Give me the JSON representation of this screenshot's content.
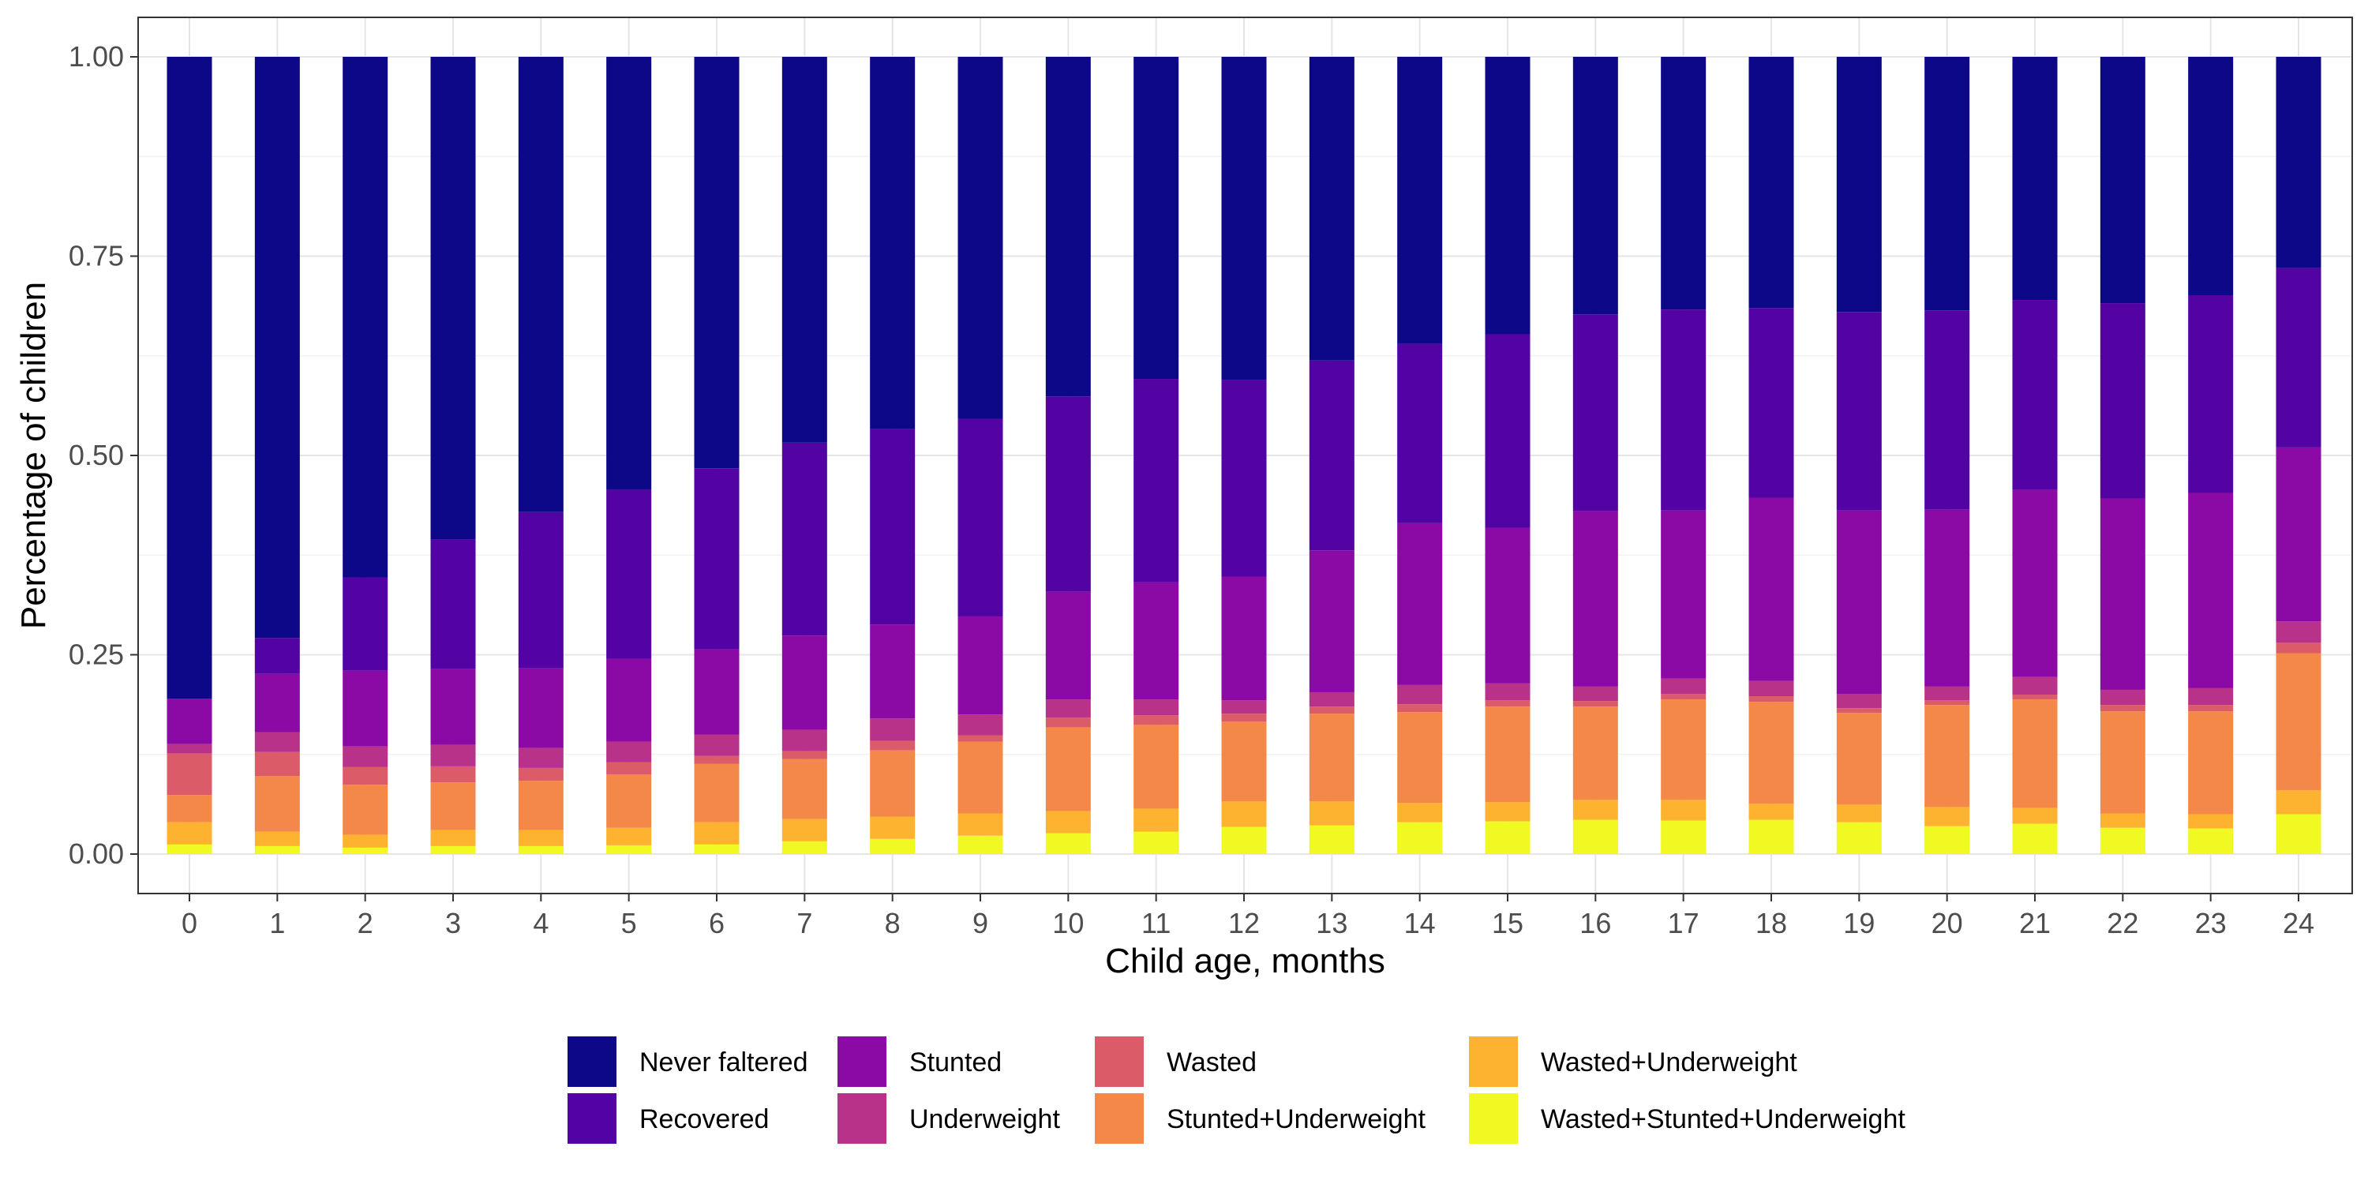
{
  "chart_data": {
    "type": "bar",
    "stacked": true,
    "title": "",
    "xlabel": "Child age, months",
    "ylabel": "Percentage of children",
    "ylim": [
      0,
      1
    ],
    "yticks": [
      "0.00",
      "0.25",
      "0.50",
      "0.75",
      "1.00"
    ],
    "grid": true,
    "legend_position": "bottom",
    "categories": [
      "0",
      "1",
      "2",
      "3",
      "4",
      "5",
      "6",
      "7",
      "8",
      "9",
      "10",
      "11",
      "12",
      "13",
      "14",
      "15",
      "16",
      "17",
      "18",
      "19",
      "20",
      "21",
      "22",
      "23",
      "24"
    ],
    "series": [
      {
        "name": "Wasted+Stunted+Underweight",
        "color": "#F0F921",
        "values": [
          0.012,
          0.01,
          0.008,
          0.01,
          0.01,
          0.011,
          0.012,
          0.016,
          0.019,
          0.023,
          0.026,
          0.028,
          0.034,
          0.036,
          0.04,
          0.041,
          0.043,
          0.042,
          0.043,
          0.04,
          0.035,
          0.038,
          0.033,
          0.032,
          0.05
        ]
      },
      {
        "name": "Wasted+Underweight",
        "color": "#FDB32F",
        "values": [
          0.028,
          0.018,
          0.016,
          0.02,
          0.02,
          0.022,
          0.028,
          0.028,
          0.028,
          0.028,
          0.028,
          0.029,
          0.032,
          0.03,
          0.024,
          0.024,
          0.025,
          0.026,
          0.02,
          0.022,
          0.024,
          0.02,
          0.018,
          0.018,
          0.03
        ]
      },
      {
        "name": "Stunted+Underweight",
        "color": "#F48849",
        "values": [
          0.034,
          0.07,
          0.063,
          0.06,
          0.062,
          0.067,
          0.073,
          0.075,
          0.083,
          0.09,
          0.105,
          0.105,
          0.1,
          0.11,
          0.114,
          0.12,
          0.117,
          0.126,
          0.128,
          0.115,
          0.128,
          0.136,
          0.128,
          0.129,
          0.172
        ]
      },
      {
        "name": "Wasted",
        "color": "#DB5C68",
        "values": [
          0.052,
          0.03,
          0.022,
          0.02,
          0.016,
          0.015,
          0.01,
          0.01,
          0.012,
          0.008,
          0.012,
          0.012,
          0.01,
          0.009,
          0.01,
          0.008,
          0.007,
          0.007,
          0.007,
          0.006,
          0.006,
          0.006,
          0.008,
          0.008,
          0.013
        ]
      },
      {
        "name": "Underweight",
        "color": "#B83289",
        "values": [
          0.012,
          0.025,
          0.026,
          0.027,
          0.025,
          0.026,
          0.027,
          0.027,
          0.028,
          0.026,
          0.023,
          0.02,
          0.017,
          0.018,
          0.024,
          0.021,
          0.018,
          0.019,
          0.019,
          0.018,
          0.017,
          0.022,
          0.019,
          0.021,
          0.027
        ]
      },
      {
        "name": "Stunted",
        "color": "#8B0AA5",
        "values": [
          0.057,
          0.073,
          0.095,
          0.095,
          0.1,
          0.104,
          0.107,
          0.118,
          0.118,
          0.123,
          0.135,
          0.147,
          0.155,
          0.178,
          0.203,
          0.195,
          0.22,
          0.211,
          0.23,
          0.23,
          0.222,
          0.235,
          0.24,
          0.245,
          0.218
        ]
      },
      {
        "name": "Recovered",
        "color": "#5302A3",
        "values": [
          0.0,
          0.045,
          0.117,
          0.163,
          0.196,
          0.212,
          0.227,
          0.242,
          0.245,
          0.248,
          0.245,
          0.255,
          0.247,
          0.238,
          0.225,
          0.243,
          0.247,
          0.252,
          0.238,
          0.249,
          0.25,
          0.238,
          0.245,
          0.248,
          0.225
        ]
      },
      {
        "name": "Never faltered",
        "color": "#0D0887",
        "values": [
          0.805,
          0.729,
          0.653,
          0.605,
          0.571,
          0.543,
          0.516,
          0.484,
          0.467,
          0.454,
          0.426,
          0.404,
          0.405,
          0.381,
          0.36,
          0.348,
          0.323,
          0.317,
          0.315,
          0.32,
          0.318,
          0.305,
          0.309,
          0.299,
          0.265
        ]
      }
    ],
    "legend_order": [
      "Never faltered",
      "Recovered",
      "Stunted",
      "Underweight",
      "Wasted",
      "Stunted+Underweight",
      "Wasted+Underweight",
      "Wasted+Stunted+Underweight"
    ]
  }
}
